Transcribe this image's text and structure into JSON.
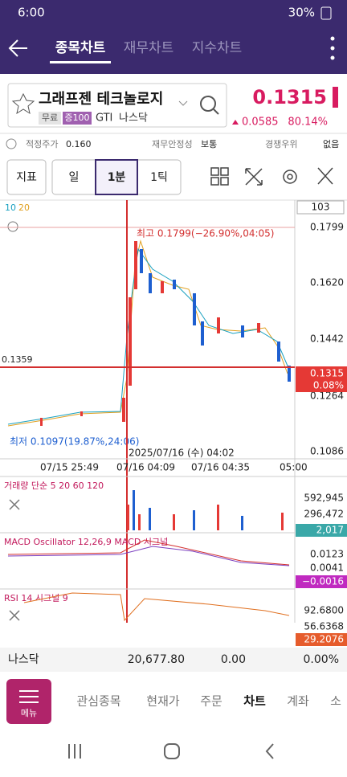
{
  "status_bar": {
    "time": "6:00",
    "battery": "30%"
  },
  "header": {
    "tabs": [
      "종목차트",
      "재무차트",
      "지수차트"
    ]
  },
  "stock": {
    "name": "그래프젠 테크놀로지",
    "badges": [
      "무료",
      "증100"
    ],
    "code": "GTI",
    "market": "나스닥",
    "price": "0.1315",
    "change": "0.0585",
    "change_pct": "80.14%"
  },
  "info_row": {
    "fair_price_label": "적정주가",
    "fair_price": "0.160",
    "stability_label": "재무안정성",
    "stability": "보통",
    "advantage_label": "경쟁우위",
    "advantage": "없음"
  },
  "toolbar": {
    "indicator": "지표",
    "periods": [
      "일",
      "1분",
      "1틱"
    ]
  },
  "chart": {
    "ma_legend": [
      "10",
      "20"
    ],
    "count": "103",
    "price_labels": [
      "0.1799",
      "0.1620",
      "0.1442",
      "0.1264",
      "0.1086"
    ],
    "current_price": "0.1315",
    "current_pct": "0.08%",
    "crosshair_price": "0.1359",
    "high_note": "최고 0.1799(−26.90%,04:05)",
    "low_note": "최저 0.1097(19.87%,24:06)",
    "crosshair_time": "2025/07/16 (수) 04:02",
    "time_labels": [
      "07/15 25:49",
      "07/16 04:09",
      "07/16 04:35",
      "05:00"
    ]
  },
  "volume": {
    "title": "거래량 단순 5 20 60 120",
    "labels": [
      "592,945",
      "296,472"
    ],
    "current": "2,017"
  },
  "macd": {
    "title": "MACD Oscillator 12,26,9 MACD 시그널",
    "labels": [
      "0.0123",
      "0.0041"
    ],
    "current": "−0.0016"
  },
  "rsi": {
    "title": "RSI 14 시그널 9",
    "labels": [
      "92.6800",
      "56.6368"
    ],
    "current": "29.2076"
  },
  "index_row": {
    "name": "나스닥",
    "value": "20,677.80",
    "change": "0.00",
    "change_pct": "0.00%"
  },
  "nav": {
    "menu": "메뉴",
    "items": [
      "관심종목",
      "현재가",
      "주문",
      "차트",
      "계좌",
      "소"
    ]
  }
}
